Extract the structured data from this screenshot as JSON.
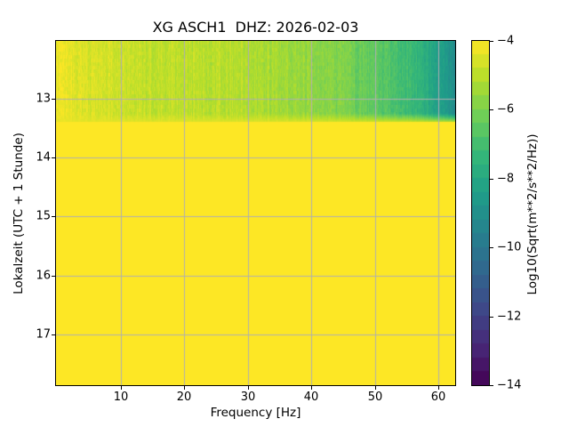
{
  "chart_data": {
    "type": "heatmap",
    "subtype": "spectrogram",
    "title": "XG ASCH1  DHZ: 2026-02-03",
    "xlabel": "Frequency [Hz]",
    "ylabel": "Lokalzeit (UTC + 1 Stunde)",
    "x_ticks": [
      10,
      20,
      30,
      40,
      50,
      60
    ],
    "y_ticks": [
      13,
      14,
      15,
      16,
      17
    ],
    "xlim": [
      -0.2,
      62.66
    ],
    "time_range_hours": [
      12.02,
      17.86
    ],
    "grid": true,
    "grid_color": "#b0b0b0",
    "background": "#ffffff",
    "no_data_fill_value": -4,
    "no_data_fill_color": "#fde725",
    "data_band": {
      "start_hour": 12.02,
      "end_hour": 13.4,
      "noise_amplitude": 0.3,
      "column_streak_amplitude": 0.55,
      "bottom_fade_value": -4.35,
      "freq_profile": [
        [
          -0.2,
          -4.2
        ],
        [
          1,
          -4.3
        ],
        [
          3,
          -4.5
        ],
        [
          6,
          -4.62
        ],
        [
          10,
          -4.75
        ],
        [
          14,
          -4.9
        ],
        [
          18,
          -5.0
        ],
        [
          22,
          -5.05
        ],
        [
          28,
          -5.12
        ],
        [
          32,
          -5.25
        ],
        [
          36,
          -5.45
        ],
        [
          40,
          -5.68
        ],
        [
          44,
          -5.95
        ],
        [
          48,
          -6.3
        ],
        [
          52,
          -6.7
        ],
        [
          56,
          -7.3
        ],
        [
          58,
          -7.8
        ],
        [
          60,
          -8.3
        ],
        [
          61.5,
          -8.8
        ],
        [
          62.66,
          -9.2
        ]
      ]
    },
    "colorbar": {
      "label": "Log10(Sqrt(m**2/s**2/Hz))",
      "ticks": [
        -4,
        -6,
        -8,
        -10,
        -12,
        -14
      ],
      "vmin": -14,
      "vmax": -4,
      "colormap": "viridis",
      "discrete_steps": 25
    },
    "viridis_stops": [
      [
        0,
        "#440154"
      ],
      [
        0.111,
        "#482878"
      ],
      [
        0.222,
        "#3e4989"
      ],
      [
        0.333,
        "#31688e"
      ],
      [
        0.444,
        "#26828e"
      ],
      [
        0.556,
        "#1f9e89"
      ],
      [
        0.667,
        "#35b779"
      ],
      [
        0.778,
        "#6ece58"
      ],
      [
        0.889,
        "#b5de2b"
      ],
      [
        1,
        "#fde725"
      ]
    ]
  }
}
